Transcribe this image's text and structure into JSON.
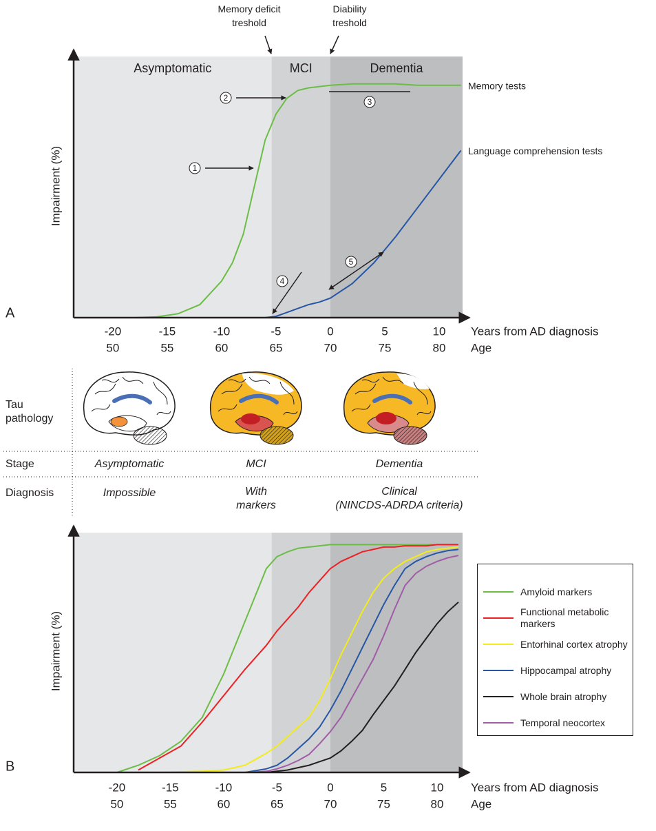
{
  "chart_data": [
    {
      "type": "line",
      "panel_label": "A",
      "ylabel": "Impairment (%)",
      "xlabel": "Years from AD diagnosis",
      "x2label": "Age",
      "xlim": [
        -23.6,
        12.15
      ],
      "xticks": [
        -20,
        -15,
        -10,
        -5,
        0,
        5,
        10
      ],
      "x2lim": [
        46.4,
        82.15
      ],
      "x2ticks": [
        50,
        55,
        60,
        65,
        70,
        75,
        80
      ],
      "ylim": [
        0,
        100
      ],
      "regions": [
        {
          "label": "Asymptomatic",
          "from": -23.6,
          "to": -5.4,
          "color": "#e6e7e8"
        },
        {
          "label": "MCI",
          "from": -5.4,
          "to": 0,
          "color": "#d1d3d4"
        },
        {
          "label": "Dementia",
          "from": 0,
          "to": 12.15,
          "color": "#bcbec0"
        }
      ],
      "thresholds": [
        [
          "Memory deficit",
          "treshold"
        ],
        [
          "Diability",
          "treshold"
        ]
      ],
      "annotations": [
        "1",
        "2",
        "3",
        "4",
        "5"
      ],
      "direct_labels": true,
      "x": [
        -23,
        -20,
        -18,
        -16,
        -14,
        -12,
        -10,
        -9,
        -8,
        -7,
        -6,
        -5,
        -4,
        -3,
        -2,
        -1,
        0,
        2,
        4,
        6,
        8,
        10,
        12
      ],
      "series": [
        {
          "name": "Memory tests",
          "color": "#6cbd45",
          "values": [
            0,
            0,
            0,
            0.3,
            1.5,
            5,
            14,
            21,
            32,
            50,
            68,
            78,
            84,
            87,
            88,
            88.5,
            89,
            89.5,
            89.5,
            89.5,
            89,
            89,
            89
          ]
        },
        {
          "name": "Language comprehension tests",
          "color": "#2756a5",
          "values": [
            0,
            0,
            0,
            0,
            0,
            0,
            0,
            0,
            0,
            0,
            0,
            0.5,
            2,
            3.5,
            5,
            6,
            7.5,
            13,
            21,
            31,
            42,
            53,
            64
          ]
        }
      ]
    },
    {
      "type": "line",
      "panel_label": "B",
      "ylabel": "Impairment (%)",
      "xlabel": "Years from AD diagnosis",
      "x2label": "Age",
      "xlim": [
        -24.06,
        12.39
      ],
      "xticks": [
        -20,
        -15,
        -10,
        -5,
        0,
        5,
        10
      ],
      "x2lim": [
        45.94,
        82.39
      ],
      "x2ticks": [
        50,
        55,
        60,
        65,
        70,
        75,
        80
      ],
      "ylim": [
        0,
        100
      ],
      "regions": [
        {
          "from": -24.06,
          "to": -5.5,
          "color": "#e6e7e8"
        },
        {
          "from": -5.5,
          "to": 0,
          "color": "#d1d3d4"
        },
        {
          "from": 0,
          "to": 12.39,
          "color": "#bcbec0"
        }
      ],
      "legend": "right",
      "x": [
        -20,
        -18,
        -16,
        -14,
        -12,
        -10,
        -8,
        -6,
        -5,
        -4,
        -3,
        -2,
        -1,
        0,
        1,
        2,
        3,
        4,
        5,
        6,
        7,
        8,
        9,
        10,
        11,
        12
      ],
      "series": [
        {
          "name": "Amyloid markers",
          "color": "#6cbd45",
          "values": [
            0,
            3,
            7,
            13,
            23,
            41,
            63,
            85,
            90,
            92,
            93.5,
            94,
            94.5,
            95,
            95,
            95,
            95,
            95,
            95,
            95,
            95,
            95,
            95,
            95,
            95,
            95
          ]
        },
        {
          "name": "Functional metabolic markers",
          "color": "#ed2024",
          "values": [
            null,
            1,
            6,
            11,
            21,
            32,
            43,
            53,
            59,
            64,
            69,
            75,
            80,
            85,
            88,
            90,
            92,
            93,
            94,
            94,
            94.5,
            94.5,
            94.5,
            95,
            95,
            95
          ]
        },
        {
          "name": "Entorhinal cortex atrophy",
          "color": "#f2ec1a",
          "values": [
            0,
            0,
            0,
            0.3,
            0.5,
            1,
            3,
            8,
            11,
            15,
            19,
            23,
            30,
            39,
            49,
            58,
            67,
            75,
            81,
            85,
            88,
            90,
            92,
            93,
            93.5,
            94
          ]
        },
        {
          "name": "Hippocampal atrophy",
          "color": "#2756a5",
          "values": [
            null,
            null,
            null,
            null,
            null,
            null,
            0,
            1.5,
            3,
            6,
            10,
            14,
            19,
            26,
            34,
            43,
            52,
            61,
            70,
            78,
            85,
            88,
            90,
            91.5,
            92.5,
            93
          ]
        },
        {
          "name": "Whole brain atrophy",
          "color": "#231f20",
          "values": [
            null,
            null,
            null,
            null,
            null,
            null,
            null,
            0,
            0.5,
            1,
            2,
            3,
            4.5,
            6,
            9,
            13,
            17.5,
            24,
            30,
            36,
            43,
            50,
            56,
            62,
            67,
            71
          ]
        },
        {
          "name": "Temporal neocortex",
          "color": "#a05ca6",
          "values": [
            null,
            null,
            null,
            null,
            null,
            null,
            0,
            0.5,
            1.5,
            3,
            5,
            7.5,
            12,
            17,
            23,
            31,
            39,
            47,
            57,
            68,
            78,
            83,
            86,
            88,
            89.5,
            90.5
          ]
        }
      ]
    }
  ],
  "table": {
    "tau_header": [
      "Tau",
      "pathology"
    ],
    "stage": {
      "header": "Stage",
      "cells": [
        "Asymptomatic",
        "MCI",
        "Dementia"
      ]
    },
    "diagnosis": {
      "header": "Diagnosis",
      "cells": [
        [
          "Impossible"
        ],
        [
          "With",
          "markers"
        ],
        [
          "Clinical",
          "(NINCDS-ADRDA criteria)"
        ]
      ]
    }
  }
}
